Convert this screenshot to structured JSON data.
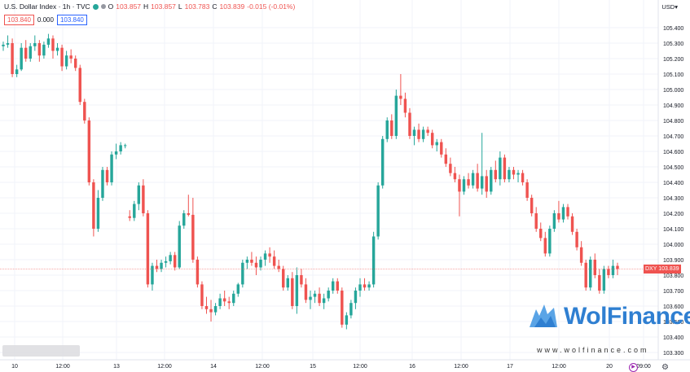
{
  "header": {
    "symbol": "U.S. Dollar Index · 1h · TVC",
    "ohlc": {
      "o_label": "O",
      "o": "103.857",
      "h_label": "H",
      "h": "103.857",
      "l_label": "L",
      "l": "103.783",
      "c_label": "C",
      "c": "103.839",
      "change": "-0.015 (-0.01%)"
    },
    "bid": "103.840",
    "spread": "0.000",
    "ask": "103.840",
    "currency": "USD"
  },
  "last_price_tag": "DXY  103.839",
  "watermark": {
    "brand": "WolFinance",
    "url": "www.wolfinance.com"
  },
  "colors": {
    "up": "#26a69a",
    "down": "#ef5350",
    "grid": "#f0f3fa",
    "axis_text": "#131722",
    "last_line": "#ef5350"
  },
  "chart_data": {
    "type": "candlestick",
    "title": "U.S. Dollar Index · 1h · TVC",
    "xlabel": "",
    "ylabel": "",
    "ylim": [
      103.3,
      105.5
    ],
    "grid": true,
    "y_ticks": [
      "105.400",
      "105.300",
      "105.200",
      "105.100",
      "105.000",
      "104.900",
      "104.800",
      "104.700",
      "104.600",
      "104.500",
      "104.400",
      "104.300",
      "104.200",
      "104.100",
      "104.000",
      "103.900",
      "103.800",
      "103.700",
      "103.600",
      "103.500",
      "103.400",
      "103.300"
    ],
    "x_ticks": [
      "10",
      "12:00",
      "13",
      "12:00",
      "14",
      "12:00",
      "15",
      "12:00",
      "16",
      "12:00",
      "17",
      "12:00",
      "20",
      "09:00"
    ],
    "last_price": 103.839,
    "candles": [
      [
        105.28,
        105.31,
        105.25,
        105.29
      ],
      [
        105.29,
        105.35,
        105.27,
        105.3
      ],
      [
        105.3,
        105.33,
        105.08,
        105.1
      ],
      [
        105.1,
        105.16,
        105.08,
        105.13
      ],
      [
        105.13,
        105.3,
        105.12,
        105.27
      ],
      [
        105.27,
        105.32,
        105.18,
        105.2
      ],
      [
        105.2,
        105.3,
        105.18,
        105.28
      ],
      [
        105.28,
        105.35,
        105.25,
        105.3
      ],
      [
        105.3,
        105.32,
        105.18,
        105.22
      ],
      [
        105.22,
        105.31,
        105.2,
        105.29
      ],
      [
        105.29,
        105.36,
        105.27,
        105.33
      ],
      [
        105.33,
        105.35,
        105.2,
        105.25
      ],
      [
        105.25,
        105.3,
        105.22,
        105.27
      ],
      [
        105.27,
        105.29,
        105.12,
        105.15
      ],
      [
        105.15,
        105.25,
        105.13,
        105.22
      ],
      [
        105.22,
        105.26,
        105.17,
        105.2
      ],
      [
        105.2,
        105.22,
        105.12,
        105.14
      ],
      [
        105.14,
        105.16,
        104.9,
        104.92
      ],
      [
        104.92,
        104.94,
        104.78,
        104.8
      ],
      [
        104.8,
        104.82,
        104.38,
        104.4
      ],
      [
        104.4,
        104.42,
        104.05,
        104.1
      ],
      [
        104.1,
        104.35,
        104.08,
        104.3
      ],
      [
        104.3,
        104.5,
        104.28,
        104.48
      ],
      [
        104.48,
        104.5,
        104.38,
        104.4
      ],
      [
        104.4,
        104.6,
        104.38,
        104.58
      ],
      [
        104.58,
        104.65,
        104.55,
        104.6
      ],
      [
        104.6,
        104.66,
        104.58,
        104.64
      ],
      [
        104.64,
        104.65,
        104.62,
        104.64
      ],
      [
        104.18,
        104.22,
        104.15,
        104.17
      ],
      [
        104.17,
        104.28,
        104.15,
        104.26
      ],
      [
        104.26,
        104.4,
        104.22,
        104.38
      ],
      [
        104.38,
        104.42,
        104.18,
        104.2
      ],
      [
        104.2,
        104.22,
        103.72,
        103.74
      ],
      [
        103.74,
        103.88,
        103.7,
        103.86
      ],
      [
        103.86,
        103.9,
        103.82,
        103.84
      ],
      [
        103.84,
        103.9,
        103.82,
        103.88
      ],
      [
        103.88,
        103.92,
        103.85,
        103.89
      ],
      [
        103.89,
        103.95,
        103.87,
        103.93
      ],
      [
        103.93,
        103.95,
        103.83,
        103.85
      ],
      [
        103.85,
        104.15,
        103.84,
        104.12
      ],
      [
        104.12,
        104.22,
        104.1,
        104.2
      ],
      [
        104.2,
        104.32,
        104.18,
        104.19
      ],
      [
        104.19,
        104.3,
        103.88,
        103.9
      ],
      [
        103.9,
        103.92,
        103.72,
        103.74
      ],
      [
        103.74,
        103.76,
        103.58,
        103.6
      ],
      [
        103.6,
        103.66,
        103.55,
        103.58
      ],
      [
        103.58,
        103.64,
        103.5,
        103.56
      ],
      [
        103.56,
        103.62,
        103.54,
        103.6
      ],
      [
        103.6,
        103.68,
        103.58,
        103.65
      ],
      [
        103.65,
        103.7,
        103.6,
        103.63
      ],
      [
        103.63,
        103.66,
        103.58,
        103.62
      ],
      [
        103.62,
        103.7,
        103.6,
        103.68
      ],
      [
        103.68,
        103.75,
        103.66,
        103.74
      ],
      [
        103.74,
        103.9,
        103.72,
        103.88
      ],
      [
        103.88,
        103.92,
        103.84,
        103.9
      ],
      [
        103.9,
        103.95,
        103.86,
        103.88
      ],
      [
        103.88,
        103.92,
        103.8,
        103.85
      ],
      [
        103.85,
        103.92,
        103.83,
        103.9
      ],
      [
        103.9,
        103.96,
        103.86,
        103.94
      ],
      [
        103.94,
        103.98,
        103.88,
        103.92
      ],
      [
        103.92,
        103.96,
        103.84,
        103.86
      ],
      [
        103.86,
        103.9,
        103.82,
        103.84
      ],
      [
        103.84,
        103.86,
        103.7,
        103.72
      ],
      [
        103.72,
        103.8,
        103.7,
        103.78
      ],
      [
        103.78,
        103.82,
        103.58,
        103.6
      ],
      [
        103.6,
        103.85,
        103.55,
        103.8
      ],
      [
        103.8,
        103.84,
        103.72,
        103.74
      ],
      [
        103.74,
        103.78,
        103.62,
        103.64
      ],
      [
        103.64,
        103.7,
        103.58,
        103.66
      ],
      [
        103.66,
        103.7,
        103.62,
        103.68
      ],
      [
        103.68,
        103.72,
        103.6,
        103.62
      ],
      [
        103.62,
        103.68,
        103.58,
        103.65
      ],
      [
        103.65,
        103.72,
        103.63,
        103.7
      ],
      [
        103.7,
        103.78,
        103.68,
        103.76
      ],
      [
        103.76,
        103.78,
        103.68,
        103.7
      ],
      [
        103.7,
        103.72,
        103.46,
        103.48
      ],
      [
        103.48,
        103.56,
        103.45,
        103.54
      ],
      [
        103.54,
        103.64,
        103.52,
        103.62
      ],
      [
        103.62,
        103.72,
        103.58,
        103.7
      ],
      [
        103.7,
        103.78,
        103.66,
        103.74
      ],
      [
        103.74,
        103.78,
        103.7,
        103.72
      ],
      [
        103.72,
        103.76,
        103.7,
        103.74
      ],
      [
        103.74,
        104.08,
        103.72,
        104.05
      ],
      [
        104.05,
        104.4,
        104.03,
        104.38
      ],
      [
        104.38,
        104.7,
        104.36,
        104.68
      ],
      [
        104.68,
        104.82,
        104.66,
        104.8
      ],
      [
        104.8,
        104.84,
        104.68,
        104.7
      ],
      [
        104.7,
        105.0,
        104.68,
        104.96
      ],
      [
        104.96,
        105.1,
        104.9,
        104.94
      ],
      [
        104.94,
        104.98,
        104.82,
        104.85
      ],
      [
        104.85,
        104.88,
        104.68,
        104.7
      ],
      [
        104.7,
        104.76,
        104.64,
        104.74
      ],
      [
        104.74,
        104.78,
        104.66,
        104.68
      ],
      [
        104.68,
        104.76,
        104.66,
        104.74
      ],
      [
        104.74,
        104.76,
        104.7,
        104.72
      ],
      [
        104.72,
        104.74,
        104.62,
        104.64
      ],
      [
        104.64,
        104.68,
        104.6,
        104.66
      ],
      [
        104.66,
        104.68,
        104.56,
        104.58
      ],
      [
        104.58,
        104.62,
        104.5,
        104.52
      ],
      [
        104.52,
        104.56,
        104.44,
        104.46
      ],
      [
        104.46,
        104.5,
        104.4,
        104.42
      ],
      [
        104.42,
        104.45,
        104.18,
        104.34
      ],
      [
        104.34,
        104.44,
        104.32,
        104.42
      ],
      [
        104.42,
        104.46,
        104.36,
        104.38
      ],
      [
        104.38,
        104.48,
        104.36,
        104.46
      ],
      [
        104.46,
        104.52,
        104.34,
        104.36
      ],
      [
        104.36,
        104.72,
        104.32,
        104.44
      ],
      [
        104.44,
        104.48,
        104.3,
        104.34
      ],
      [
        104.34,
        104.5,
        104.32,
        104.48
      ],
      [
        104.48,
        104.54,
        104.4,
        104.42
      ],
      [
        104.42,
        104.6,
        104.38,
        104.56
      ],
      [
        104.56,
        104.58,
        104.4,
        104.42
      ],
      [
        104.42,
        104.5,
        104.4,
        104.48
      ],
      [
        104.48,
        104.5,
        104.42,
        104.45
      ],
      [
        104.45,
        104.48,
        104.4,
        104.46
      ],
      [
        104.46,
        104.48,
        104.38,
        104.4
      ],
      [
        104.4,
        104.42,
        104.28,
        104.3
      ],
      [
        104.3,
        104.32,
        104.18,
        104.2
      ],
      [
        104.2,
        104.24,
        104.08,
        104.1
      ],
      [
        104.1,
        104.14,
        104.02,
        104.04
      ],
      [
        104.04,
        104.08,
        103.92,
        103.94
      ],
      [
        103.94,
        104.12,
        103.92,
        104.1
      ],
      [
        104.1,
        104.22,
        104.08,
        104.2
      ],
      [
        104.2,
        104.28,
        104.14,
        104.16
      ],
      [
        104.16,
        104.26,
        104.14,
        104.24
      ],
      [
        104.24,
        104.26,
        104.16,
        104.18
      ],
      [
        104.18,
        104.2,
        104.06,
        104.08
      ],
      [
        104.08,
        104.1,
        103.96,
        103.98
      ],
      [
        103.98,
        104.02,
        103.86,
        103.88
      ],
      [
        103.88,
        103.9,
        103.7,
        103.72
      ],
      [
        103.72,
        103.92,
        103.7,
        103.9
      ],
      [
        103.9,
        103.94,
        103.78,
        103.8
      ],
      [
        103.8,
        103.84,
        103.68,
        103.7
      ],
      [
        103.7,
        103.86,
        103.68,
        103.84
      ],
      [
        103.84,
        103.86,
        103.78,
        103.8
      ],
      [
        103.8,
        103.9,
        103.78,
        103.86
      ],
      [
        103.86,
        103.88,
        103.8,
        103.84
      ]
    ]
  }
}
